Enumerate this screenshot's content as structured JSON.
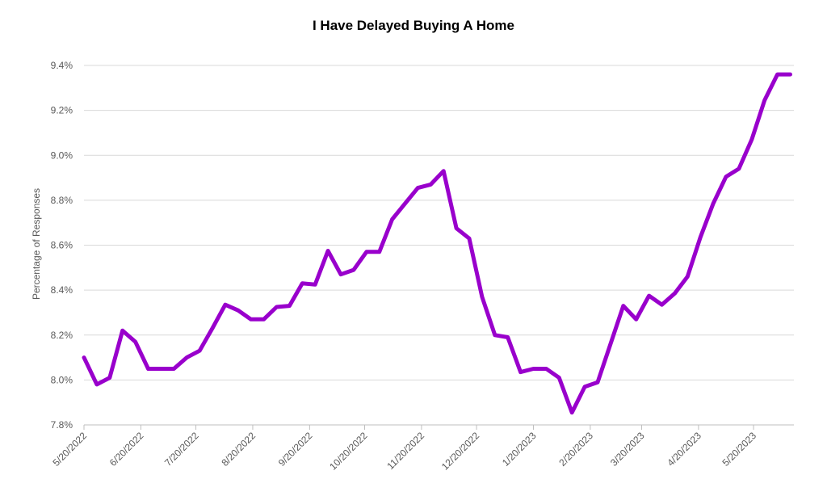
{
  "colors": {
    "line": "#9900cc",
    "grid": "#d9d9d9",
    "axis": "#bfbfbf",
    "text": "#595959"
  },
  "chart_data": {
    "type": "line",
    "title": "I Have Delayed Buying A Home",
    "xlabel": "",
    "ylabel": "Percentage of Responses",
    "ylim": [
      7.8,
      9.4
    ],
    "yticks": [
      7.8,
      8.0,
      8.2,
      8.4,
      8.6,
      8.8,
      9.0,
      9.2,
      9.4
    ],
    "ytick_labels": [
      "7.8%",
      "8.0%",
      "8.2%",
      "8.4%",
      "8.6%",
      "8.8%",
      "9.0%",
      "9.2%",
      "9.4%"
    ],
    "xlim": [
      "2022-05-20",
      "2023-06-11"
    ],
    "xtick_dates": [
      "2022-05-20",
      "2022-06-20",
      "2022-07-20",
      "2022-08-20",
      "2022-09-20",
      "2022-10-20",
      "2022-11-20",
      "2022-12-20",
      "2023-01-20",
      "2023-02-20",
      "2023-03-20",
      "2023-04-20",
      "2023-05-20"
    ],
    "xtick_labels": [
      "5/20/2022",
      "6/20/2022",
      "7/20/2022",
      "8/20/2022",
      "9/20/2022",
      "10/20/2022",
      "11/20/2022",
      "12/20/2022",
      "1/20/2023",
      "2/20/2023",
      "3/20/2023",
      "4/20/2023",
      "5/20/2023"
    ],
    "grid": "horizontal",
    "legend": "none",
    "series": [
      {
        "x": [
          "2022-05-20",
          "2022-05-27",
          "2022-06-03",
          "2022-06-10",
          "2022-06-17",
          "2022-06-24",
          "2022-07-01",
          "2022-07-08",
          "2022-07-15",
          "2022-07-22",
          "2022-07-29",
          "2022-08-05",
          "2022-08-12",
          "2022-08-19",
          "2022-08-26",
          "2022-09-02",
          "2022-09-09",
          "2022-09-16",
          "2022-09-23",
          "2022-09-30",
          "2022-10-07",
          "2022-10-14",
          "2022-10-21",
          "2022-10-28",
          "2022-11-04",
          "2022-11-11",
          "2022-11-18",
          "2022-11-25",
          "2022-12-02",
          "2022-12-09",
          "2022-12-16",
          "2022-12-23",
          "2022-12-30",
          "2023-01-06",
          "2023-01-13",
          "2023-01-20",
          "2023-01-27",
          "2023-02-03",
          "2023-02-10",
          "2023-02-17",
          "2023-02-24",
          "2023-03-03",
          "2023-03-10",
          "2023-03-17",
          "2023-03-24",
          "2023-03-31",
          "2023-04-07",
          "2023-04-14",
          "2023-04-21",
          "2023-04-28",
          "2023-05-05",
          "2023-05-12",
          "2023-05-19",
          "2023-05-26",
          "2023-06-02",
          "2023-06-09"
        ],
        "values": [
          8.1,
          7.98,
          8.01,
          8.22,
          8.17,
          8.05,
          8.05,
          8.05,
          8.1,
          8.13,
          8.23,
          8.335,
          8.31,
          8.27,
          8.27,
          8.325,
          8.33,
          8.43,
          8.425,
          8.575,
          8.47,
          8.49,
          8.57,
          8.57,
          8.715,
          8.785,
          8.855,
          8.87,
          8.93,
          8.675,
          8.63,
          8.37,
          8.2,
          8.19,
          8.035,
          8.05,
          8.05,
          8.01,
          7.855,
          7.97,
          7.99,
          8.16,
          8.33,
          8.27,
          8.375,
          8.335,
          8.385,
          8.46,
          8.635,
          8.785,
          8.905,
          8.94,
          9.07,
          9.245,
          9.36,
          9.36
        ]
      }
    ]
  }
}
